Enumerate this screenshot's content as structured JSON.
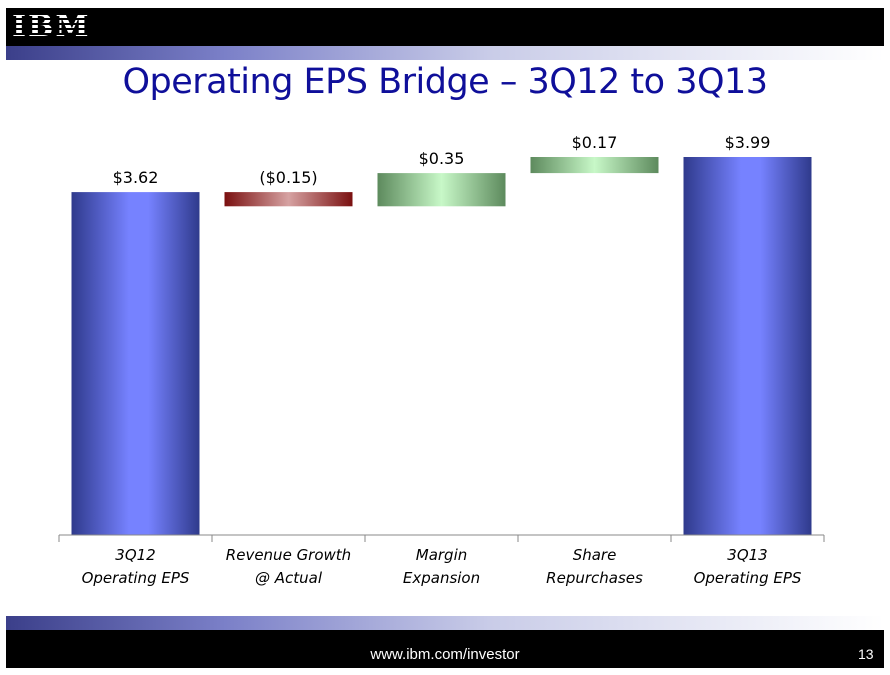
{
  "header": {
    "logo_text": "IBM"
  },
  "title": "Operating EPS Bridge – 3Q12 to 3Q13",
  "chart_data": {
    "type": "bar",
    "subtype": "waterfall",
    "categories": [
      [
        "3Q12",
        "Operating EPS"
      ],
      [
        "Revenue Growth",
        "@ Actual"
      ],
      [
        "Margin",
        "Expansion"
      ],
      [
        "Share",
        "Repurchases"
      ],
      [
        "3Q13",
        "Operating EPS"
      ]
    ],
    "values": [
      3.62,
      -0.15,
      0.35,
      0.17,
      3.99
    ],
    "value_labels": [
      "$3.62",
      "($0.15)",
      "$0.35",
      "$0.17",
      "$3.99"
    ],
    "kinds": [
      "total",
      "delta",
      "delta",
      "delta",
      "total"
    ],
    "ylim": [
      0,
      3.99
    ],
    "colors": {
      "total": "#6e78f2",
      "negative": "#8b1a1a",
      "positive": "#b9f0b9"
    },
    "xlabel": "",
    "ylabel": ""
  },
  "footer": {
    "url": "www.ibm.com/investor",
    "page": "13"
  }
}
